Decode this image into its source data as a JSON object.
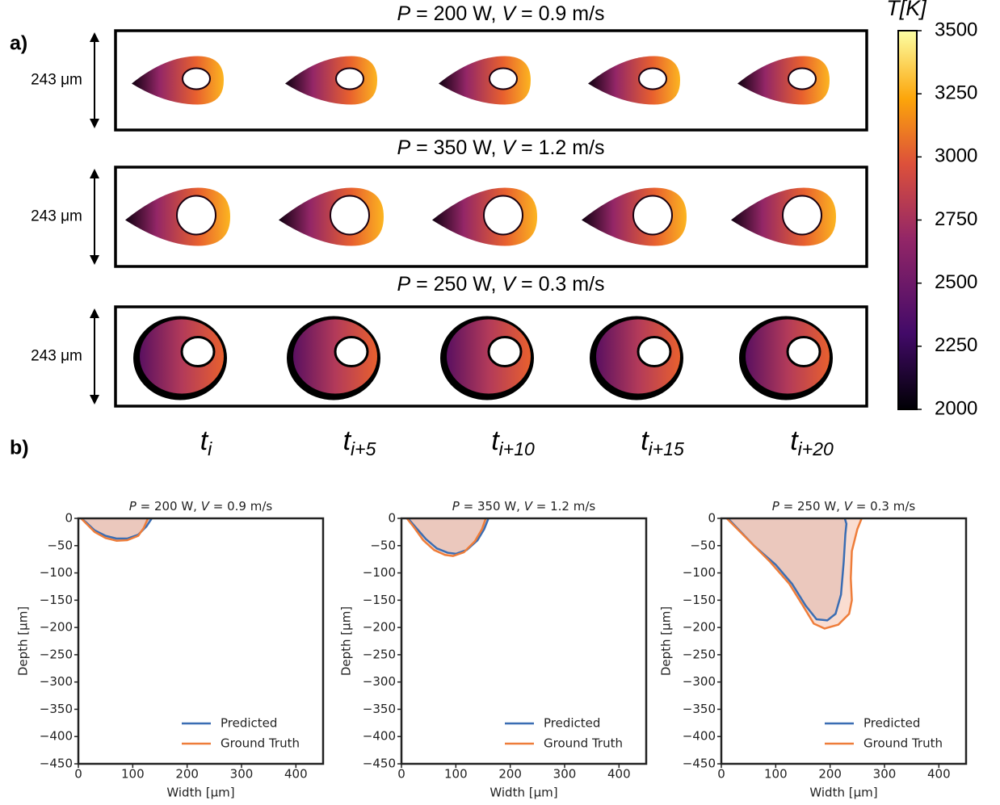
{
  "panel_a": {
    "label": "a)",
    "rows": [
      {
        "title": [
          "P",
          " = 200 W, ",
          "V",
          " = 0.9 m/s"
        ],
        "scale_label": "243 μm"
      },
      {
        "title": [
          "P",
          " = 350 W, ",
          "V",
          " = 1.2 m/s"
        ],
        "scale_label": "243 μm"
      },
      {
        "title": [
          "P",
          " = 250 W, ",
          "V",
          " = 0.3 m/s"
        ],
        "scale_label": "243 μm"
      }
    ],
    "time_labels": [
      {
        "symbol": "t",
        "subscript": "i"
      },
      {
        "symbol": "t",
        "subscript": "i+5"
      },
      {
        "symbol": "t",
        "subscript": "i+10"
      },
      {
        "symbol": "t",
        "subscript": "i+15"
      },
      {
        "symbol": "t",
        "subscript": "i+20"
      }
    ],
    "colorbar": {
      "label": "T[K]",
      "lim": [
        2000,
        3500
      ],
      "ticks": [
        2000,
        2250,
        2500,
        2750,
        3000,
        3250,
        3500
      ]
    }
  },
  "panel_b": {
    "label": "b)"
  },
  "chart_data": [
    {
      "type": "line",
      "title": [
        "P",
        " = 200 W, ",
        "V",
        " = 0.9 m/s"
      ],
      "x_label": "Width [μm]",
      "y_label": "Depth [μm]",
      "xlim": [
        0,
        450
      ],
      "ylim": [
        -450,
        0
      ],
      "xticks": [
        0,
        100,
        200,
        300,
        400
      ],
      "yticks": [
        0,
        {
          "value": -50,
          "label": "−50"
        },
        {
          "value": -100,
          "label": "−100"
        },
        {
          "value": -150,
          "label": "−150"
        },
        {
          "value": -200,
          "label": "−200"
        },
        {
          "value": -250,
          "label": "−250"
        },
        {
          "value": -300,
          "label": "−300"
        },
        {
          "value": -350,
          "label": "−350"
        },
        {
          "value": -400,
          "label": "−400"
        },
        {
          "value": -450,
          "label": "−450"
        }
      ],
      "legend": "lower right",
      "series": [
        {
          "name": "Predicted",
          "color": "#3a6db3",
          "fill": "#bfa6ad",
          "x": [
            5,
            15,
            30,
            50,
            70,
            90,
            110,
            125,
            135
          ],
          "values": [
            0,
            -8,
            -22,
            -32,
            -37,
            -37,
            -30,
            -15,
            0
          ]
        },
        {
          "name": "Ground Truth",
          "color": "#ee7d3a",
          "fill": "#f6c6b2",
          "x": [
            5,
            15,
            30,
            50,
            70,
            90,
            110,
            120,
            128
          ],
          "values": [
            0,
            -10,
            -25,
            -36,
            -41,
            -40,
            -32,
            -18,
            0
          ]
        }
      ]
    },
    {
      "type": "line",
      "title": [
        "P",
        " = 350 W, ",
        "V",
        " = 1.2 m/s"
      ],
      "x_label": "Width [μm]",
      "y_label": "Depth [μm]",
      "xlim": [
        0,
        450
      ],
      "ylim": [
        -450,
        0
      ],
      "xticks": [
        0,
        100,
        200,
        300,
        400
      ],
      "yticks": [
        0,
        {
          "value": -50,
          "label": "−50"
        },
        {
          "value": -100,
          "label": "−100"
        },
        {
          "value": -150,
          "label": "−150"
        },
        {
          "value": -200,
          "label": "−200"
        },
        {
          "value": -250,
          "label": "−250"
        },
        {
          "value": -300,
          "label": "−300"
        },
        {
          "value": -350,
          "label": "−350"
        },
        {
          "value": -400,
          "label": "−400"
        },
        {
          "value": -450,
          "label": "−450"
        }
      ],
      "legend": "lower right",
      "series": [
        {
          "name": "Predicted",
          "color": "#3a6db3",
          "fill": "#bfa6ad",
          "x": [
            12,
            25,
            45,
            65,
            85,
            100,
            120,
            140,
            152,
            160
          ],
          "values": [
            0,
            -15,
            -38,
            -55,
            -63,
            -65,
            -58,
            -40,
            -20,
            0
          ]
        },
        {
          "name": "Ground Truth",
          "color": "#ee7d3a",
          "fill": "#f6c6b2",
          "x": [
            10,
            22,
            40,
            60,
            80,
            95,
            115,
            135,
            148,
            155
          ],
          "values": [
            0,
            -15,
            -40,
            -58,
            -67,
            -69,
            -62,
            -42,
            -20,
            0
          ]
        }
      ]
    },
    {
      "type": "line",
      "title": [
        "P",
        " = 250 W, ",
        "V",
        " = 0.3 m/s"
      ],
      "x_label": "Width [μm]",
      "y_label": "Depth [μm]",
      "xlim": [
        0,
        450
      ],
      "ylim": [
        -450,
        0
      ],
      "xticks": [
        0,
        100,
        200,
        300,
        400
      ],
      "yticks": [
        0,
        {
          "value": -50,
          "label": "−50"
        },
        {
          "value": -100,
          "label": "−100"
        },
        {
          "value": -150,
          "label": "−150"
        },
        {
          "value": -200,
          "label": "−200"
        },
        {
          "value": -250,
          "label": "−250"
        },
        {
          "value": -300,
          "label": "−300"
        },
        {
          "value": -350,
          "label": "−350"
        },
        {
          "value": -400,
          "label": "−400"
        },
        {
          "value": -450,
          "label": "−450"
        }
      ],
      "legend": "lower right",
      "series": [
        {
          "name": "Predicted",
          "color": "#3a6db3",
          "fill": "#bfa6ad",
          "x": [
            12,
            60,
            100,
            130,
            155,
            175,
            195,
            210,
            220,
            225,
            228,
            230,
            227
          ],
          "values": [
            0,
            -50,
            -85,
            -120,
            -160,
            -185,
            -187,
            -175,
            -140,
            -80,
            -30,
            -10,
            0
          ]
        },
        {
          "name": "Ground Truth",
          "color": "#ee7d3a",
          "fill": "#f6c6b2",
          "x": [
            10,
            50,
            90,
            125,
            150,
            170,
            190,
            215,
            235,
            240,
            238,
            240,
            250,
            258
          ],
          "values": [
            0,
            -40,
            -80,
            -120,
            -160,
            -193,
            -202,
            -195,
            -175,
            -150,
            -110,
            -60,
            -20,
            0
          ]
        }
      ]
    }
  ]
}
